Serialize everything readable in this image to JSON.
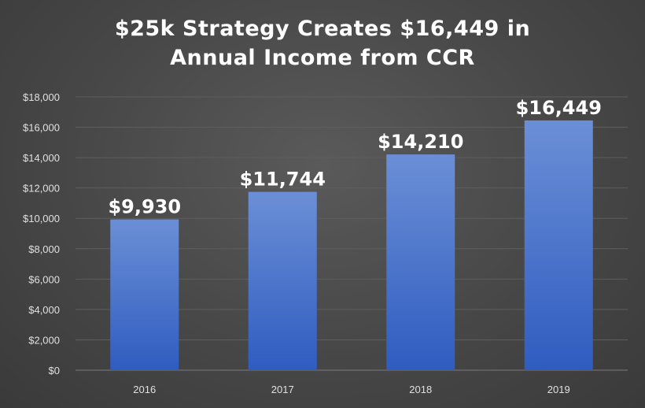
{
  "chart_data": {
    "type": "bar",
    "title": "$25k Strategy Creates $16,449 in Annual Income from CCR",
    "title_lines": [
      "$25k Strategy Creates $16,449 in",
      "Annual Income from CCR"
    ],
    "categories": [
      "2016",
      "2017",
      "2018",
      "2019"
    ],
    "values": [
      9930,
      11744,
      14210,
      16449
    ],
    "data_labels": [
      "$9,930",
      "$11,744",
      "$14,210",
      "$16,449"
    ],
    "y_ticks": [
      {
        "value": 0,
        "label": "$0"
      },
      {
        "value": 2000,
        "label": "$2,000"
      },
      {
        "value": 4000,
        "label": "$4,000"
      },
      {
        "value": 6000,
        "label": "$6,000"
      },
      {
        "value": 8000,
        "label": "$8,000"
      },
      {
        "value": 10000,
        "label": "$10,000"
      },
      {
        "value": 12000,
        "label": "$12,000"
      },
      {
        "value": 14000,
        "label": "$14,000"
      },
      {
        "value": 16000,
        "label": "$16,000"
      },
      {
        "value": 18000,
        "label": "$18,000"
      }
    ],
    "ylim": [
      0,
      18000
    ],
    "xlabel": "",
    "ylabel": "",
    "grid": true,
    "legend": "none",
    "colors": {
      "bar_top": "#6b8fd6",
      "bar_bottom": "#2f5cc0",
      "grid": "#5e5e5e",
      "axis": "#7a7a7a"
    }
  }
}
